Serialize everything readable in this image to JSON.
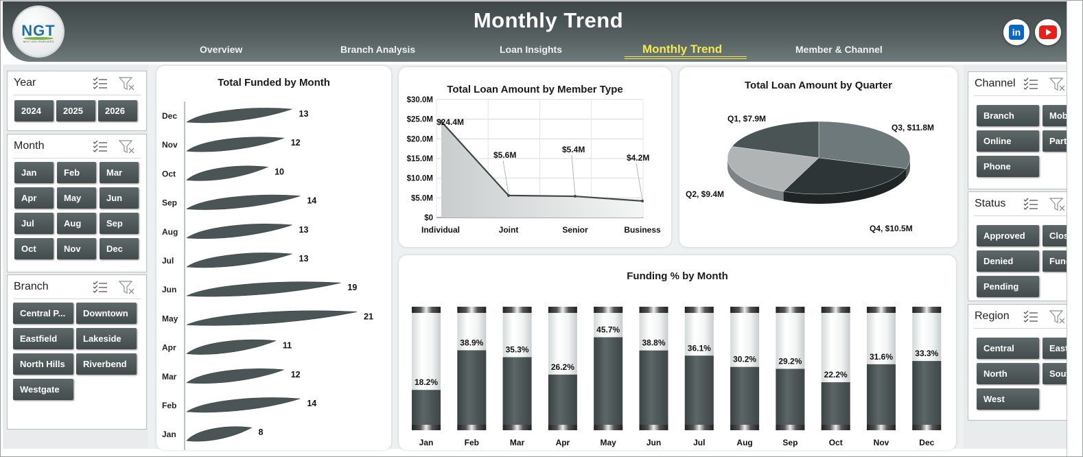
{
  "header": {
    "title": "Monthly Trend",
    "logo_text": "NGT",
    "logo_subtext": "NEXT GEN TEMPLATES",
    "nav": [
      "Overview",
      "Branch Analysis",
      "Loan Insights",
      "Monthly Trend",
      "Member & Channel"
    ],
    "active_nav": "Monthly Trend",
    "social": [
      "linkedin-icon",
      "youtube-icon"
    ]
  },
  "slicers": {
    "year": {
      "title": "Year",
      "items": [
        "2024",
        "2025",
        "2026"
      ]
    },
    "month": {
      "title": "Month",
      "items": [
        "Jan",
        "Feb",
        "Mar",
        "Apr",
        "May",
        "Jun",
        "Jul",
        "Aug",
        "Sep",
        "Oct",
        "Nov",
        "Dec"
      ]
    },
    "branch": {
      "title": "Branch",
      "items": [
        "Central P...",
        "Downtown",
        "Eastfield",
        "Lakeside",
        "North Hills",
        "Riverbend",
        "Westgate"
      ]
    },
    "channel": {
      "title": "Channel",
      "items": [
        "Branch",
        "Mob",
        "Online",
        "Part",
        "Phone"
      ]
    },
    "status": {
      "title": "Status",
      "items": [
        "Approved",
        "Clos",
        "Denied",
        "Fund",
        "Pending"
      ]
    },
    "region": {
      "title": "Region",
      "items": [
        "Central",
        "East",
        "North",
        "Sout",
        "West"
      ]
    }
  },
  "colors": {
    "header_bg": "#566061",
    "accent_yellow": "#f5ea4f",
    "bar_dark": "#4d5657",
    "button_bg": "#4f5859"
  },
  "chart_data": [
    {
      "type": "bar",
      "title": "Total Funded by Month",
      "orientation": "horizontal",
      "categories": [
        "Dec",
        "Nov",
        "Oct",
        "Sep",
        "Aug",
        "Jul",
        "Jun",
        "May",
        "Apr",
        "Mar",
        "Feb",
        "Jan"
      ],
      "values": [
        13,
        12,
        10,
        14,
        13,
        13,
        19,
        21,
        11,
        12,
        14,
        8
      ]
    },
    {
      "type": "area",
      "title": "Total Loan Amount by Member Type",
      "categories": [
        "Individual",
        "Joint",
        "Senior",
        "Business"
      ],
      "values": [
        24.4,
        5.6,
        5.4,
        4.2
      ],
      "data_labels": [
        "$24.4M",
        "$5.6M",
        "$5.4M",
        "$4.2M"
      ],
      "y_ticks": [
        "$0",
        "$5.0M",
        "$10.0M",
        "$15.0M",
        "$20.0M",
        "$25.0M",
        "$30.0M"
      ],
      "ylim": [
        0,
        30
      ],
      "grid": true
    },
    {
      "type": "pie",
      "title": "Total Loan Amount by Quarter",
      "categories": [
        "Q1",
        "Q2",
        "Q3",
        "Q4"
      ],
      "values": [
        7.9,
        9.4,
        11.8,
        10.5
      ],
      "data_labels": [
        "Q1, $7.9M",
        "Q2, $9.4M",
        "Q3, $11.8M",
        "Q4, $10.5M"
      ],
      "colors": [
        "#4a5455",
        "#a9adae",
        "#6f7b7c",
        "#2f3637"
      ]
    },
    {
      "type": "bar",
      "title": "Funding % by Month",
      "categories": [
        "Jan",
        "Feb",
        "Mar",
        "Apr",
        "May",
        "Jun",
        "Jul",
        "Aug",
        "Sep",
        "Oct",
        "Nov",
        "Dec"
      ],
      "values": [
        18.2,
        38.9,
        35.3,
        26.2,
        45.7,
        38.8,
        36.1,
        30.2,
        29.2,
        22.2,
        31.6,
        33.3
      ],
      "data_labels": [
        "18.2%",
        "38.9%",
        "35.3%",
        "26.2%",
        "45.7%",
        "38.8%",
        "36.1%",
        "30.2%",
        "29.2%",
        "22.2%",
        "31.6%",
        "33.3%"
      ],
      "ylim": [
        0,
        100
      ]
    }
  ]
}
